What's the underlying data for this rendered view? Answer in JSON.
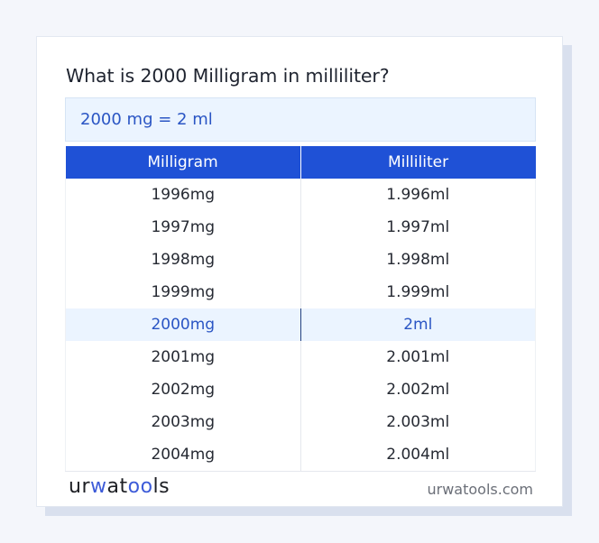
{
  "page": {
    "title": "What is 2000 Milligram in milliliter?",
    "result": "2000 mg = 2 ml"
  },
  "table": {
    "headers": [
      "Milligram",
      "Milliliter"
    ],
    "rows": [
      [
        "1996mg",
        "1.996ml"
      ],
      [
        "1997mg",
        "1.997ml"
      ],
      [
        "1998mg",
        "1.998ml"
      ],
      [
        "1999mg",
        "1.999ml"
      ],
      [
        "2000mg",
        "2ml"
      ],
      [
        "2001mg",
        "2.001ml"
      ],
      [
        "2002mg",
        "2.002ml"
      ],
      [
        "2003mg",
        "2.003ml"
      ],
      [
        "2004mg",
        "2.004ml"
      ]
    ],
    "highlight_index": 4
  },
  "footer": {
    "logo_parts": [
      "ur",
      "w",
      "at",
      "oo",
      "ls"
    ],
    "site": "urwatools.com"
  },
  "colors": {
    "accent": "#1f51d6",
    "highlight_bg": "#ebf4ff",
    "highlight_text": "#2a55c4"
  }
}
